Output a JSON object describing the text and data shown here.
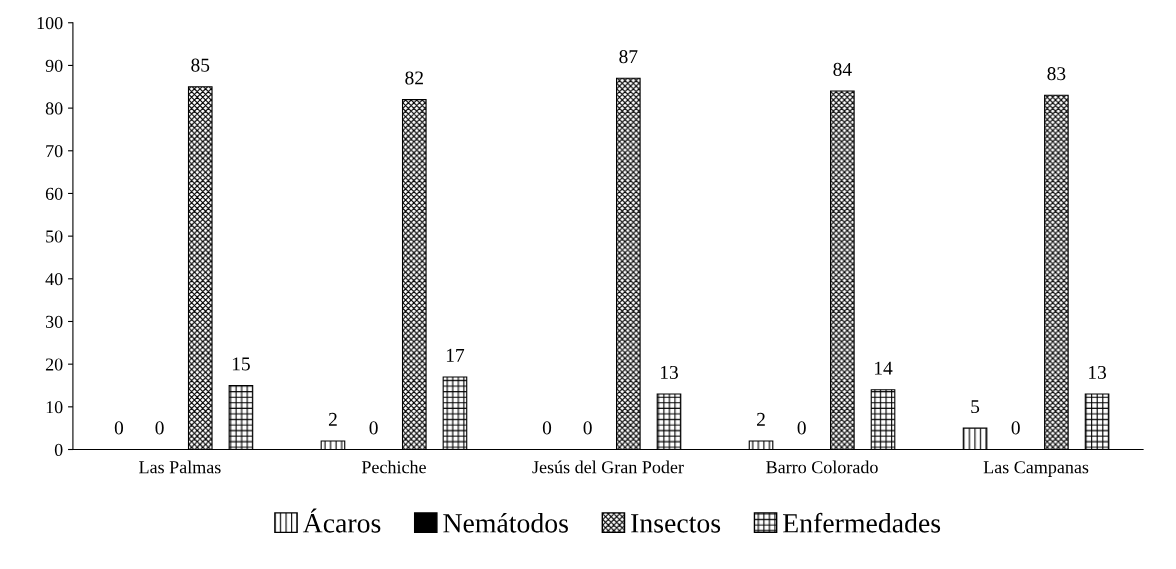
{
  "chart_data": {
    "type": "bar",
    "categories": [
      "Las Palmas",
      "Pechiche",
      "Jesús del Gran Poder",
      "Barro Colorado",
      "Las Campanas"
    ],
    "series": [
      {
        "name": "Ácaros",
        "color": "#000000",
        "values": [
          0,
          2,
          0,
          2,
          5
        ]
      },
      {
        "name": "Nemátodos",
        "color": "#000000",
        "values": [
          0,
          0,
          0,
          0,
          0
        ]
      },
      {
        "name": "Insectos",
        "color": "#000000",
        "values": [
          85,
          82,
          87,
          84,
          83
        ]
      },
      {
        "name": "Enfermedades",
        "color": "#000000",
        "values": [
          15,
          17,
          13,
          14,
          13
        ]
      }
    ],
    "ylim": [
      0,
      100
    ],
    "yticks": [
      0,
      10,
      20,
      30,
      40,
      50,
      60,
      70,
      80,
      90,
      100
    ],
    "data_labels": true,
    "grid": false,
    "legend": "bottom"
  }
}
